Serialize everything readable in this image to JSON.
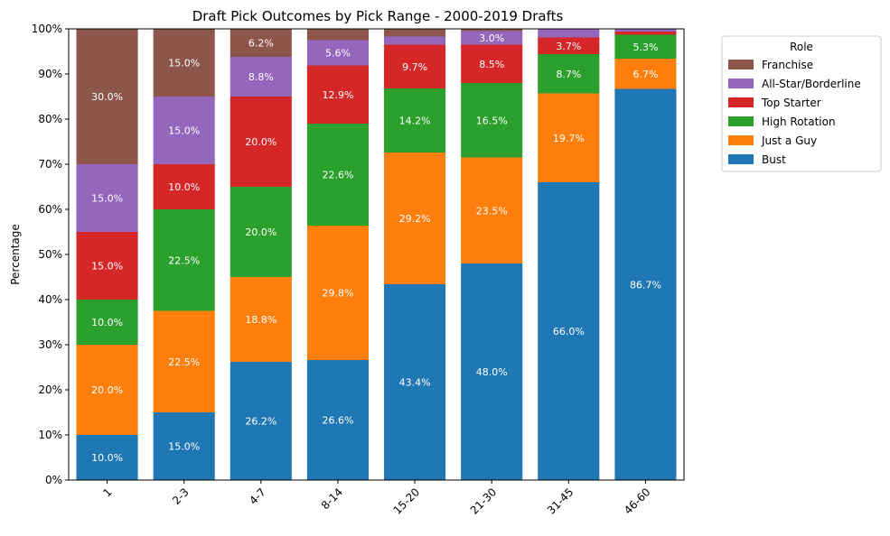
{
  "chart_data": {
    "type": "stacked-bar",
    "title": "Draft Pick Outcomes by Pick Range - 2000-2019 Drafts",
    "xlabel": "",
    "ylabel": "Percentage",
    "ylim": [
      0,
      100
    ],
    "y_ticks": [
      0,
      10,
      20,
      30,
      40,
      50,
      60,
      70,
      80,
      90,
      100
    ],
    "y_tick_suffix": "%",
    "categories": [
      "1",
      "2-3",
      "4-7",
      "8-14",
      "15-20",
      "21-30",
      "31-45",
      "46-60"
    ],
    "legend_title": "Role",
    "legend_position": "upper-right-outside",
    "series": [
      {
        "name": "Bust",
        "color": "#1f77b4",
        "values": [
          10.0,
          15.0,
          26.2,
          26.6,
          43.4,
          48.0,
          66.0,
          86.7
        ]
      },
      {
        "name": "Just a Guy",
        "color": "#ff7f0e",
        "values": [
          20.0,
          22.5,
          18.8,
          29.8,
          29.2,
          23.5,
          19.7,
          6.7
        ]
      },
      {
        "name": "High Rotation",
        "color": "#2ca02c",
        "values": [
          10.0,
          22.5,
          20.0,
          22.6,
          14.2,
          16.5,
          8.7,
          5.3
        ]
      },
      {
        "name": "Top Starter",
        "color": "#d62728",
        "values": [
          15.0,
          10.0,
          20.0,
          12.9,
          9.7,
          8.5,
          3.7,
          0.7
        ]
      },
      {
        "name": "All-Star/Borderline",
        "color": "#9467bd",
        "values": [
          15.0,
          15.0,
          8.8,
          5.6,
          1.8,
          3.0,
          1.9,
          0.6
        ]
      },
      {
        "name": "Franchise",
        "color": "#8c564b",
        "values": [
          30.0,
          15.0,
          6.2,
          2.4,
          1.8,
          0.5,
          0.0,
          0.0
        ]
      }
    ],
    "label_threshold": 3.0
  }
}
